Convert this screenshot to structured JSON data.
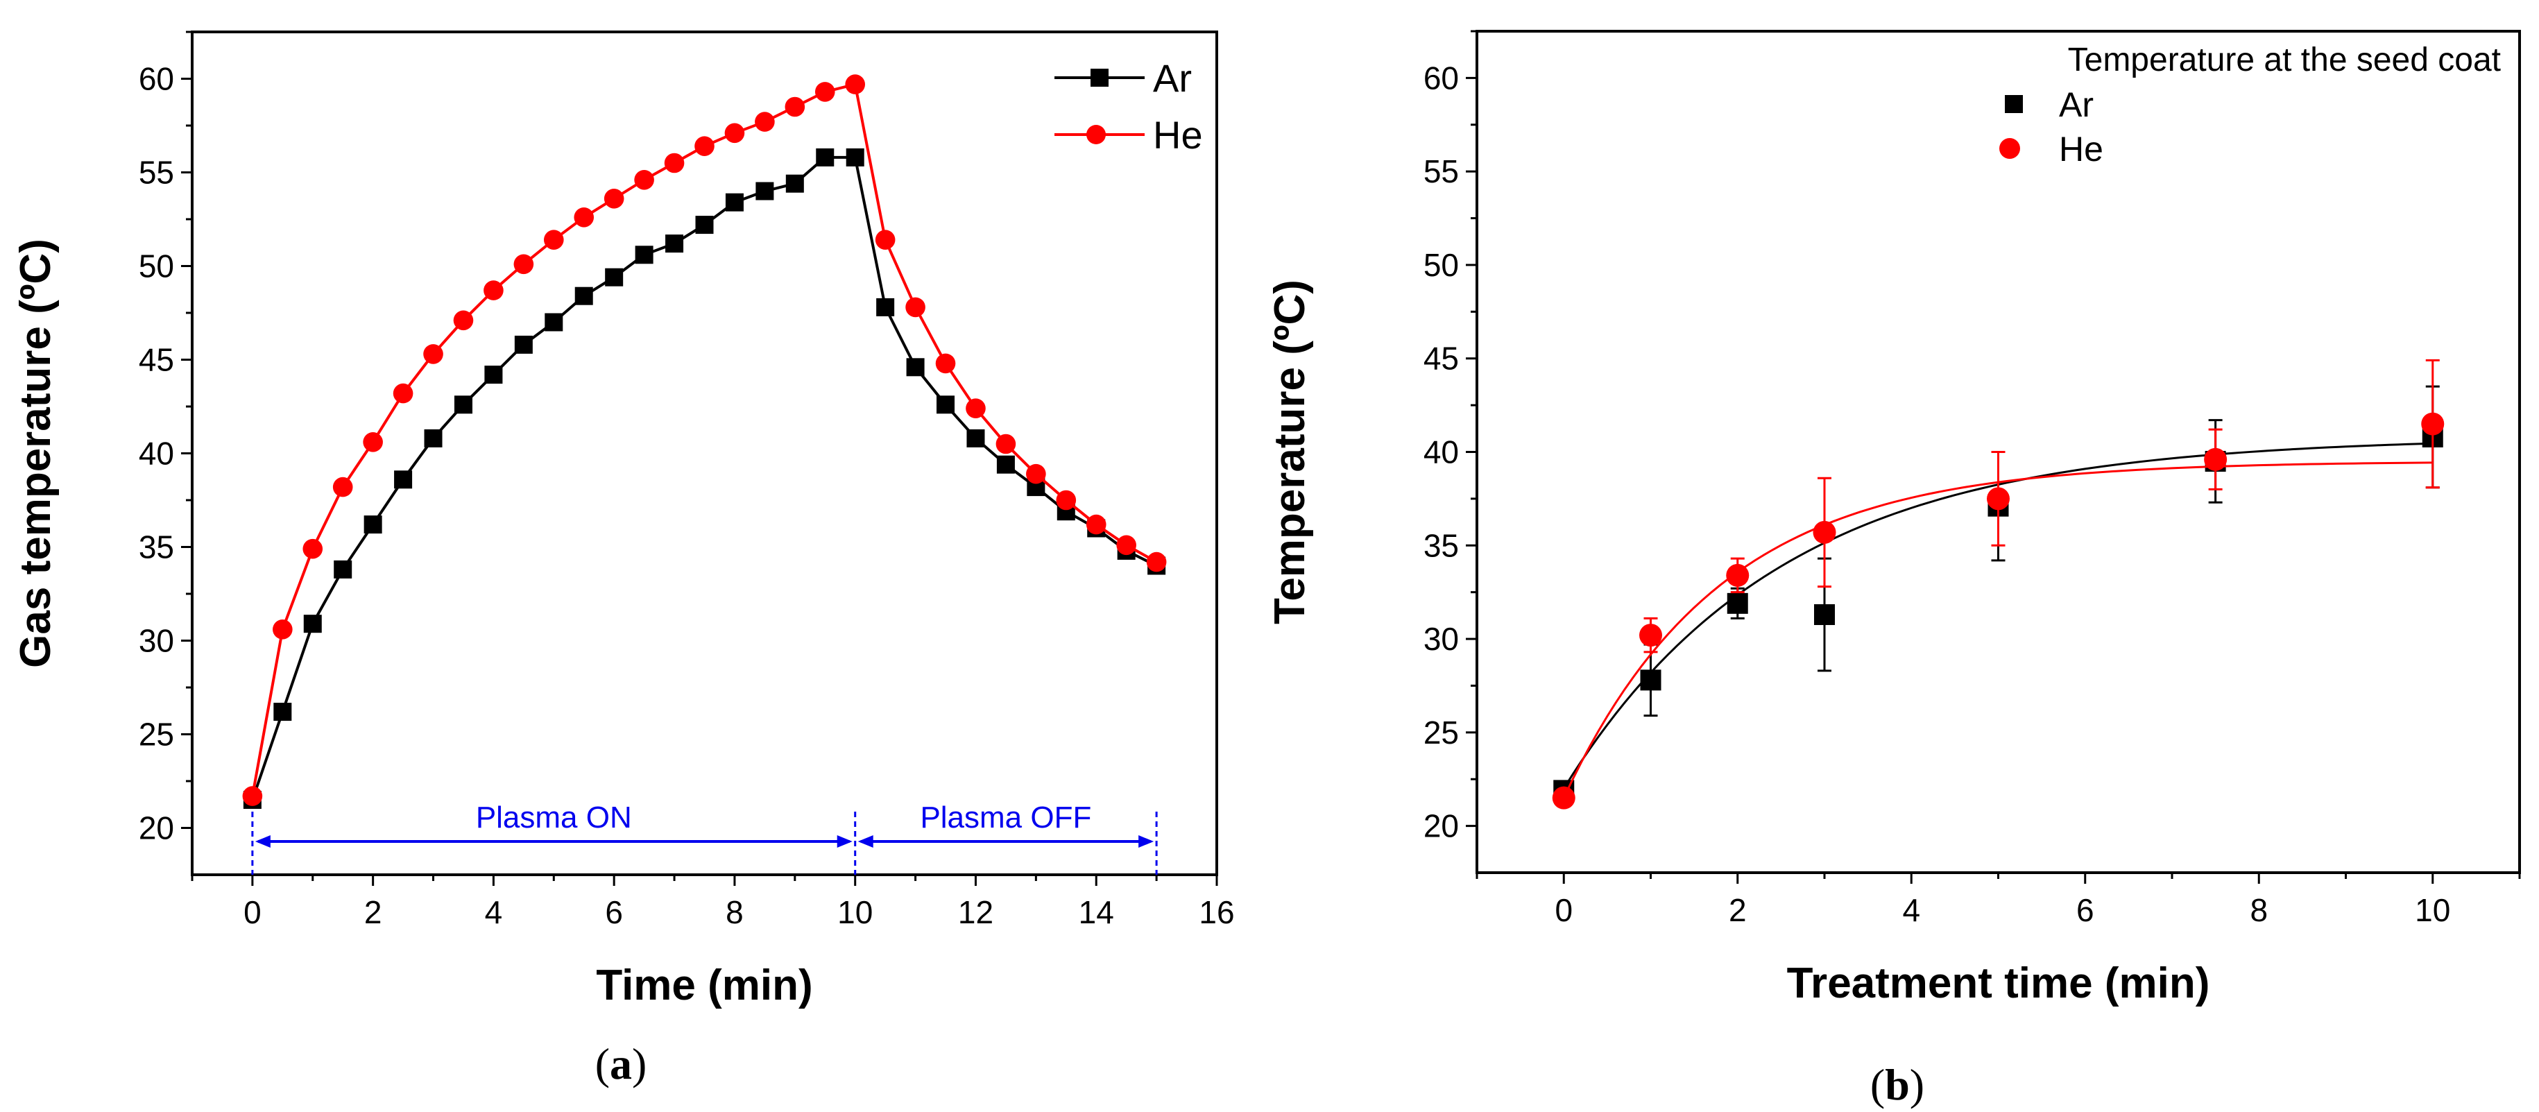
{
  "colors": {
    "ar": "#000000",
    "he": "#ff0000",
    "annot": "#0000ee"
  },
  "chart_data": [
    {
      "type": "line",
      "panel_label": "(a)",
      "panel_label_parts": [
        "(",
        "a",
        ")"
      ],
      "xlabel": "Time (min)",
      "ylabel": "Gas temperature (ºC)",
      "xlim": [
        -1,
        16
      ],
      "ylim": [
        17.5,
        62.5
      ],
      "xticks": [
        0,
        2,
        4,
        6,
        8,
        10,
        12,
        14,
        16
      ],
      "yticks": [
        20,
        25,
        30,
        35,
        40,
        45,
        50,
        55,
        60
      ],
      "legend_position": "top-right",
      "grid": false,
      "x": [
        0,
        0.5,
        1,
        1.5,
        2,
        2.5,
        3,
        3.5,
        4,
        4.5,
        5,
        5.5,
        6,
        6.5,
        7,
        7.5,
        8,
        8.5,
        9,
        9.5,
        10,
        10.5,
        11,
        11.5,
        12,
        12.5,
        13,
        13.5,
        14,
        14.5,
        15
      ],
      "series": [
        {
          "name": "Ar",
          "marker": "square",
          "color": "#000000",
          "values": [
            21.5,
            26.2,
            30.9,
            33.8,
            36.2,
            38.6,
            40.8,
            42.6,
            44.2,
            45.8,
            47.0,
            48.4,
            49.4,
            50.6,
            51.2,
            52.2,
            53.4,
            54.0,
            54.4,
            55.8,
            55.8,
            47.8,
            44.6,
            42.6,
            40.8,
            39.4,
            38.2,
            36.9,
            36.0,
            34.8,
            34.0
          ]
        },
        {
          "name": "He",
          "marker": "circle",
          "color": "#ff0000",
          "values": [
            21.7,
            30.6,
            34.9,
            38.2,
            40.6,
            43.2,
            45.3,
            47.1,
            48.7,
            50.1,
            51.4,
            52.6,
            53.6,
            54.6,
            55.5,
            56.4,
            57.1,
            57.7,
            58.5,
            59.3,
            59.7,
            51.4,
            47.8,
            44.8,
            42.4,
            40.5,
            38.9,
            37.5,
            36.2,
            35.1,
            34.2
          ]
        }
      ],
      "annotations": [
        {
          "text": "Plasma ON",
          "x_range": [
            0,
            10
          ]
        },
        {
          "text": "Plasma OFF",
          "x_range": [
            10,
            15
          ]
        }
      ]
    },
    {
      "type": "scatter",
      "panel_label": "(b)",
      "panel_label_parts": [
        "(",
        "b",
        ")"
      ],
      "xlabel": "Treatment time (min)",
      "ylabel": "Temperature (ºC)",
      "xlim": [
        -1,
        11
      ],
      "ylim": [
        17.5,
        62.5
      ],
      "xticks": [
        0,
        2,
        4,
        6,
        8,
        10
      ],
      "yticks": [
        20,
        25,
        30,
        35,
        40,
        45,
        50,
        55,
        60
      ],
      "legend_title": "Temperature at the seed coat",
      "legend_position": "top-right",
      "grid": false,
      "x": [
        0,
        1,
        2,
        3,
        5,
        7.5,
        10
      ],
      "series": [
        {
          "name": "Ar",
          "marker": "square",
          "color": "#000000",
          "values": [
            21.9,
            27.8,
            31.9,
            31.3,
            37.1,
            39.5,
            40.8
          ],
          "errors": [
            0.3,
            1.9,
            0.8,
            3.0,
            2.9,
            2.2,
            2.7
          ],
          "fit": {
            "model": "exponential",
            "y0": 22,
            "A": 18.8,
            "tau": 2.5
          }
        },
        {
          "name": "He",
          "marker": "circle",
          "color": "#ff0000",
          "values": [
            21.5,
            30.2,
            33.4,
            35.7,
            37.5,
            39.6,
            41.5
          ],
          "errors": [
            0.3,
            0.9,
            0.9,
            2.9,
            2.5,
            1.6,
            3.4
          ],
          "fit": {
            "model": "exponential",
            "y0": 21.5,
            "A": 18,
            "tau": 1.8
          }
        }
      ]
    }
  ]
}
